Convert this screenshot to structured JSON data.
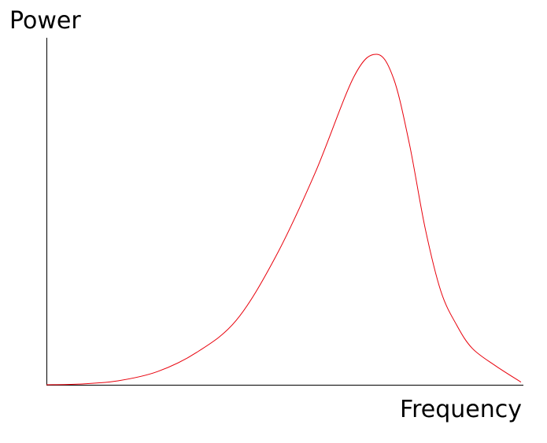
{
  "chart_data": {
    "type": "line",
    "title": "",
    "xlabel": "Frequency",
    "ylabel": "Power",
    "xlim": [
      0,
      100
    ],
    "ylim": [
      0,
      100
    ],
    "grid": false,
    "ticks": false,
    "series": [
      {
        "color": "#e8000b",
        "x": [
          0,
          6.8,
          15,
          23.3,
          31.5,
          39.8,
          48,
          56.3,
          64.5,
          69.3,
          72.8,
          76.1,
          79.4,
          82.7,
          86,
          89.3,
          94.2,
          99.5
        ],
        "y": [
          0,
          0.2,
          1.2,
          4,
          9.8,
          19.5,
          38.6,
          64,
          93.3,
          100,
          92.6,
          72.9,
          47.4,
          28.3,
          18.1,
          11,
          5.7,
          0.8
        ]
      }
    ]
  }
}
